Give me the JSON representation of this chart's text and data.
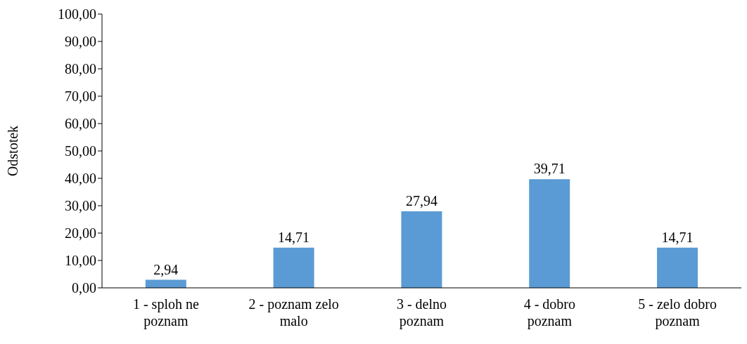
{
  "chart_data": {
    "type": "bar",
    "ylabel": "Odstotek",
    "categories": [
      "1 - sploh ne poznam",
      "2 - poznam zelo malo",
      "3 - delno poznam",
      "4 - dobro poznam",
      "5 - zelo dobro poznam"
    ],
    "values": [
      2.94,
      14.71,
      27.94,
      39.71,
      14.71
    ],
    "value_labels": [
      "2,94",
      "14,71",
      "27,94",
      "39,71",
      "14,71"
    ],
    "color": "#5b9bd5",
    "ylim": [
      0,
      100
    ],
    "yticks": [
      {
        "value": 0,
        "label": "0,00"
      },
      {
        "value": 10,
        "label": "10,00"
      },
      {
        "value": 20,
        "label": "20,00"
      },
      {
        "value": 30,
        "label": "30,00"
      },
      {
        "value": 40,
        "label": "40,00"
      },
      {
        "value": 50,
        "label": "50,00"
      },
      {
        "value": 60,
        "label": "60,00"
      },
      {
        "value": 70,
        "label": "70,00"
      },
      {
        "value": 80,
        "label": "80,00"
      },
      {
        "value": 90,
        "label": "90,00"
      },
      {
        "value": 100,
        "label": "100,00"
      }
    ],
    "grid": false,
    "legend": false
  }
}
